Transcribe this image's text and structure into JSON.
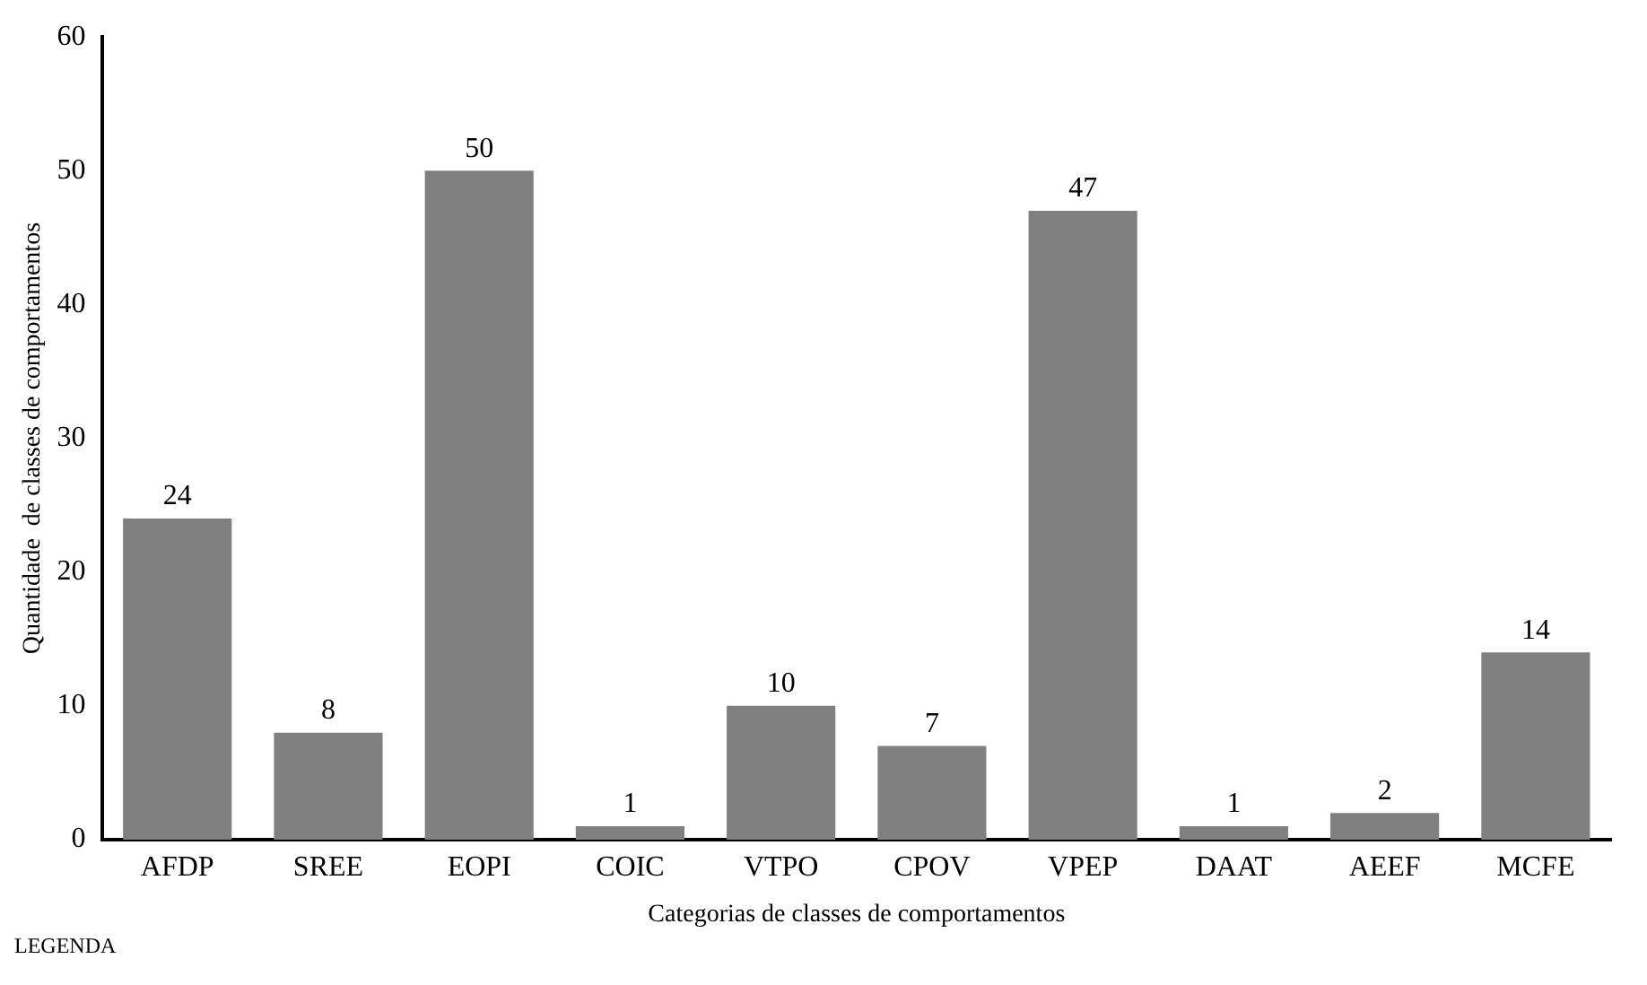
{
  "chart_data": {
    "type": "bar",
    "xlabel": "Categorias de classes de comportamentos",
    "ylabel": "Quantidade  de classes de comportamentos",
    "categories": [
      "AFDP",
      "SREE",
      "EOPI",
      "COIC",
      "VTPO",
      "CPOV",
      "VPEP",
      "DAAT",
      "AEEF",
      "MCFE"
    ],
    "values": [
      24,
      8,
      50,
      1,
      10,
      7,
      47,
      1,
      2,
      14
    ],
    "color": "#808080",
    "ylim": [
      0,
      60
    ],
    "yticks": [
      0,
      10,
      20,
      30,
      40,
      50,
      60
    ],
    "grid": false,
    "legend": false,
    "data_labels": true,
    "annotations": [
      "LEGENDA"
    ]
  }
}
